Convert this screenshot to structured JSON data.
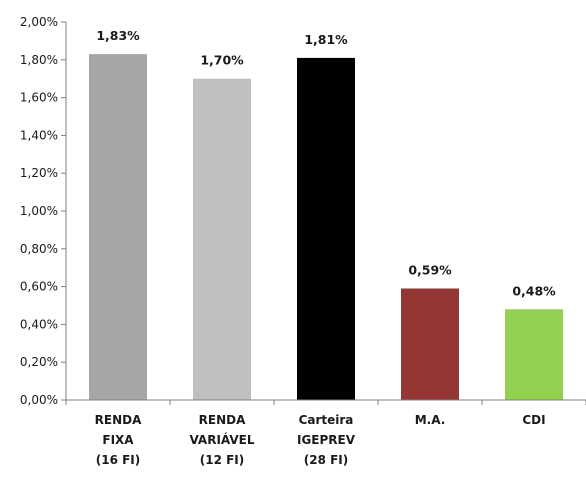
{
  "chart_data": {
    "type": "bar",
    "categories": [
      [
        "RENDA",
        "FIXA",
        "(16 FI)"
      ],
      [
        "RENDA",
        "VARIÁVEL",
        "(12 FI)"
      ],
      [
        "Carteira",
        "IGEPREV",
        "(28 FI)"
      ],
      [
        "M.A."
      ],
      [
        "CDI"
      ]
    ],
    "values": [
      1.83,
      1.7,
      1.81,
      0.59,
      0.48
    ],
    "data_labels": [
      "1,83%",
      "1,70%",
      "1,81%",
      "0,59%",
      "0,48%"
    ],
    "bar_colors": [
      "#a6a6a6",
      "#bfbfbf",
      "#000000",
      "#943634",
      "#92d050"
    ],
    "ylim": [
      0,
      2.0
    ],
    "y_ticks": [
      0,
      0.2,
      0.4,
      0.6,
      0.8,
      1.0,
      1.2,
      1.4,
      1.6,
      1.8,
      2.0
    ],
    "y_tick_labels": [
      "0,00%",
      "0,20%",
      "0,40%",
      "0,60%",
      "0,80%",
      "1,00%",
      "1,20%",
      "1,40%",
      "1,60%",
      "1,80%",
      "2,00%"
    ],
    "title": "",
    "xlabel": "",
    "ylabel": "",
    "grid": false,
    "legend": "none"
  }
}
